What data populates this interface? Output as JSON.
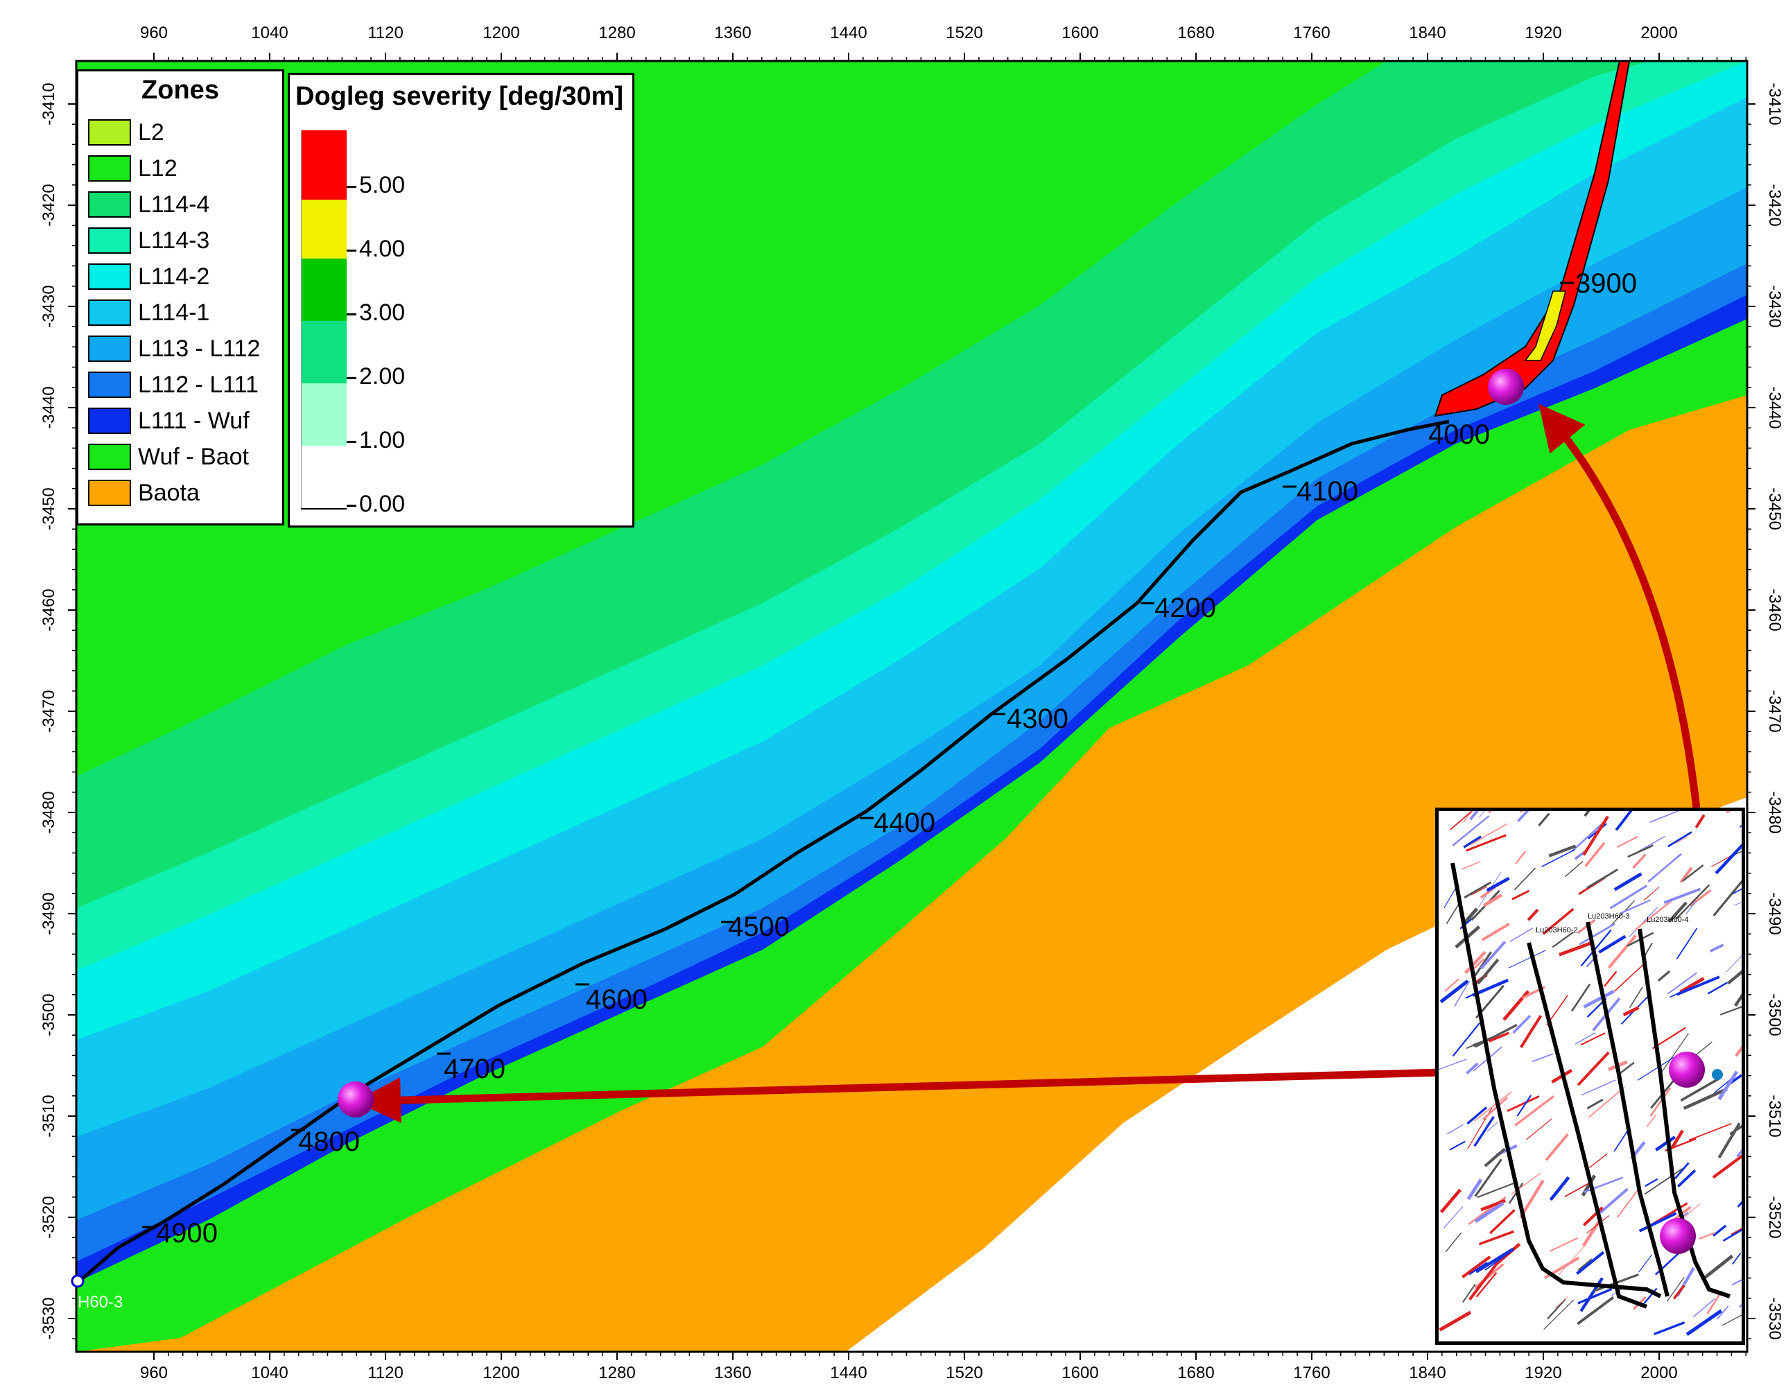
{
  "x_axis_ticks": [
    "960",
    "1040",
    "1120",
    "1200",
    "1280",
    "1360",
    "1440",
    "1520",
    "1600",
    "1680",
    "1760",
    "1840",
    "1920",
    "2000"
  ],
  "y_axis_ticks": [
    "-3410",
    "-3420",
    "-3430",
    "-3440",
    "-3450",
    "-3460",
    "-3470",
    "-3480",
    "-3490",
    "-3500",
    "-3510",
    "-3520",
    "-3530"
  ],
  "zones_legend": {
    "title": "Zones",
    "items": [
      {
        "label": "L2",
        "color": "#b0f020"
      },
      {
        "label": "L12",
        "color": "#18e818"
      },
      {
        "label": "L114-4",
        "color": "#10e070"
      },
      {
        "label": "L114-3",
        "color": "#10f0b0"
      },
      {
        "label": "L114-2",
        "color": "#00f0e8"
      },
      {
        "label": "L114-1",
        "color": "#10c8f0"
      },
      {
        "label": "L113 - L112",
        "color": "#10a8f0"
      },
      {
        "label": "L112 - L111",
        "color": "#1478f0"
      },
      {
        "label": "L111 - Wuf",
        "color": "#0a2ef0"
      },
      {
        "label": "Wuf - Baot",
        "color": "#18e818"
      },
      {
        "label": "Baota",
        "color": "#ffa500"
      }
    ]
  },
  "dogleg_legend": {
    "title": "Dogleg severity [deg/30m]",
    "ticks": [
      "5.00",
      "4.00",
      "3.00",
      "2.00",
      "1.00",
      "0.00"
    ],
    "colors": [
      "#ff0000",
      "#f0f000",
      "#00c800",
      "#10e080",
      "#a0ffd0",
      "#ffffff"
    ]
  },
  "md_labels": [
    "3900",
    "4000",
    "4100",
    "4200",
    "4300",
    "4400",
    "4500",
    "4600",
    "4700",
    "4800",
    "4900"
  ],
  "well_label": "H60-3",
  "inset": {
    "well_labels": [
      "Lu203H60-2",
      "Lu203H60-3",
      "Lu203H60-4"
    ]
  },
  "colors": {
    "arrow": "#c00000",
    "marker": "#e020e0",
    "trajectory": "#000000"
  }
}
